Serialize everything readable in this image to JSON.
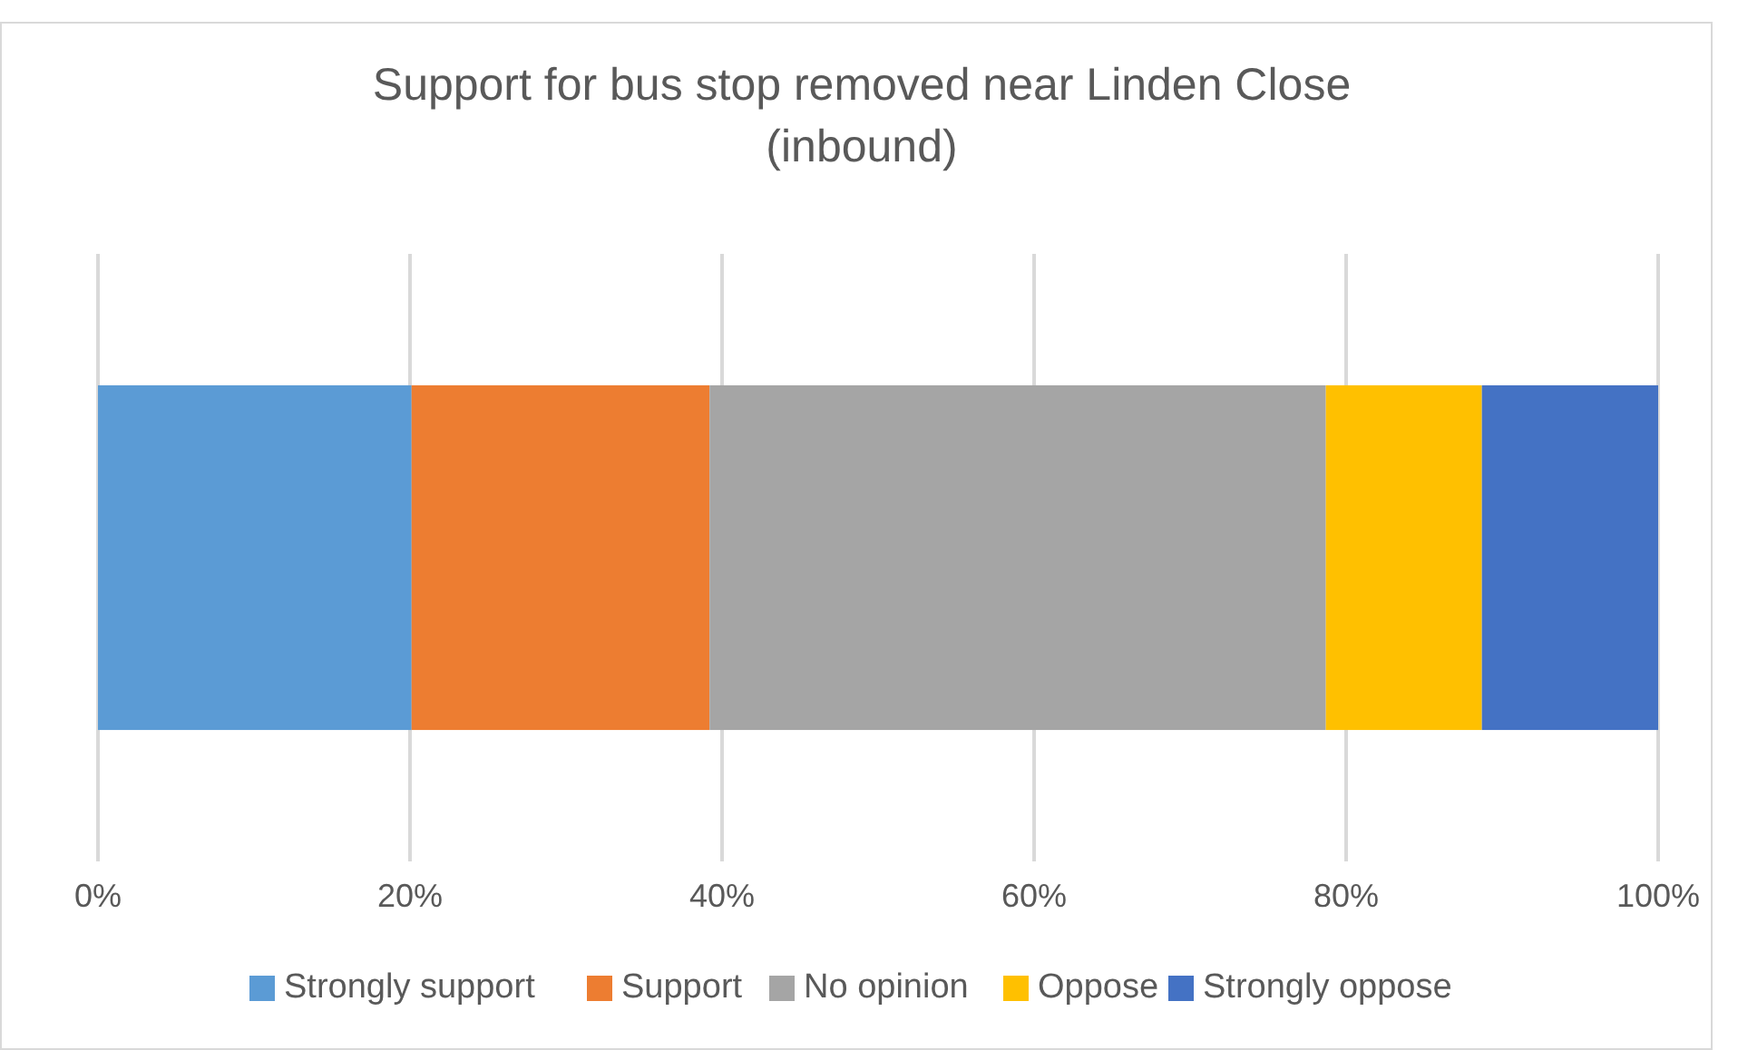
{
  "chart_data": {
    "type": "bar",
    "orientation": "horizontal",
    "stacked": true,
    "title": "Support for bus stop removed near Linden Close (inbound)",
    "categories": [
      null
    ],
    "series": [
      {
        "name": "Strongly support",
        "color": "#5b9bd5",
        "values": [
          20.1
        ]
      },
      {
        "name": "Support",
        "color": "#ed7d31",
        "values": [
          19.1
        ]
      },
      {
        "name": "No opinion",
        "color": "#a5a5a5",
        "values": [
          39.5
        ]
      },
      {
        "name": "Oppose",
        "color": "#ffc000",
        "values": [
          10.0
        ]
      },
      {
        "name": "Strongly oppose",
        "color": "#4472c4",
        "values": [
          11.3
        ]
      }
    ],
    "xlim": [
      0,
      100
    ],
    "xticks": [
      {
        "value": 0,
        "label": "0%"
      },
      {
        "value": 20,
        "label": "20%"
      },
      {
        "value": 40,
        "label": "40%"
      },
      {
        "value": 60,
        "label": "60%"
      },
      {
        "value": 80,
        "label": "80%"
      },
      {
        "value": 100,
        "label": "100%"
      }
    ],
    "grid": "x",
    "legend": "bottom"
  }
}
